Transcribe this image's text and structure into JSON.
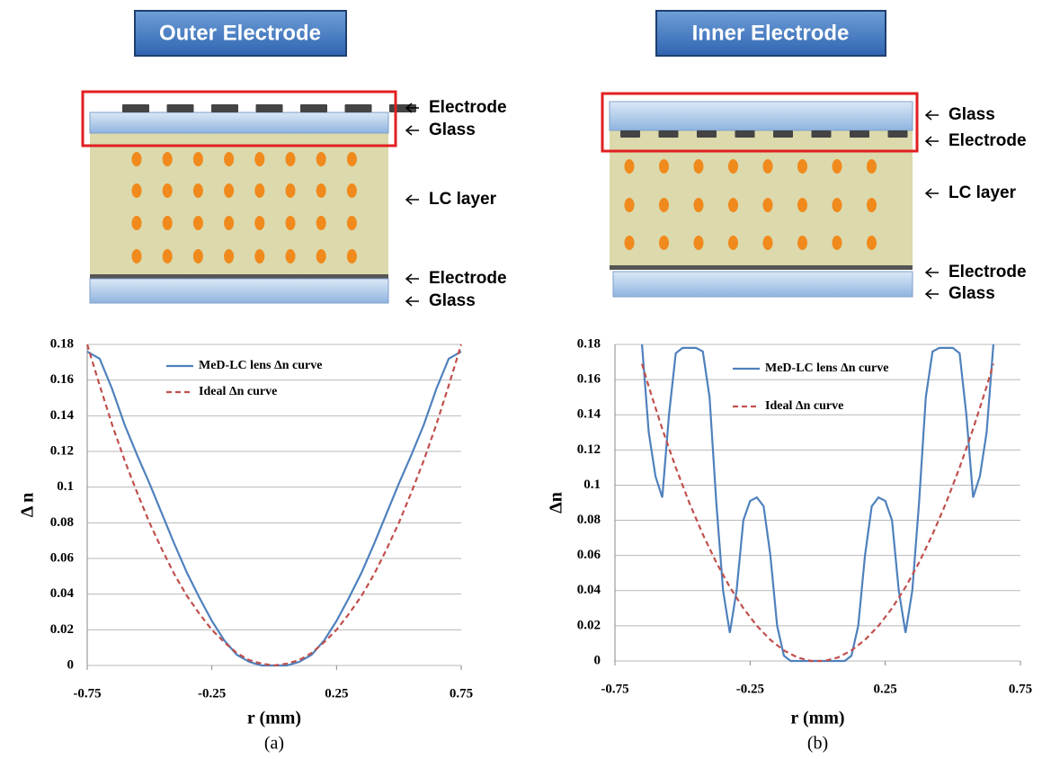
{
  "figures": [
    {
      "banner": "Outer Electrode",
      "labels": [
        "Electrode",
        "Glass",
        "LC layer",
        "Electrode",
        "Glass"
      ]
    },
    {
      "banner": "Inner Electrode",
      "labels": [
        "Glass",
        "Electrode",
        "LC layer",
        "Electrode",
        "Glass"
      ]
    }
  ],
  "chart_data": [
    {
      "type": "line",
      "caption": "(a)",
      "xlabel": "r (mm)",
      "ylabel": "Δ n",
      "x": [
        -0.75,
        -0.7,
        -0.65,
        -0.6,
        -0.55,
        -0.5,
        -0.45,
        -0.4,
        -0.35,
        -0.3,
        -0.25,
        -0.2,
        -0.15,
        -0.1,
        -0.05,
        0,
        0.05,
        0.1,
        0.15,
        0.2,
        0.25,
        0.3,
        0.35,
        0.4,
        0.45,
        0.5,
        0.55,
        0.6,
        0.65,
        0.7,
        0.75
      ],
      "series": [
        {
          "name": "MeD-LC lens Δn curve",
          "color": "#4f81bd",
          "dash": false,
          "values": [
            0.176,
            0.172,
            0.155,
            0.135,
            0.118,
            0.102,
            0.085,
            0.068,
            0.052,
            0.038,
            0.025,
            0.014,
            0.006,
            0.002,
            0,
            0,
            0,
            0.002,
            0.006,
            0.014,
            0.025,
            0.038,
            0.052,
            0.068,
            0.085,
            0.102,
            0.118,
            0.135,
            0.155,
            0.172,
            0.176
          ]
        },
        {
          "name": "Ideal Δn curve",
          "color": "#c0504d",
          "dash": true,
          "values": [
            0.18,
            0.157,
            0.135,
            0.115,
            0.097,
            0.08,
            0.065,
            0.051,
            0.039,
            0.029,
            0.02,
            0.013,
            0.007,
            0.003,
            0.001,
            0,
            0.001,
            0.003,
            0.007,
            0.013,
            0.02,
            0.029,
            0.039,
            0.051,
            0.065,
            0.08,
            0.097,
            0.115,
            0.135,
            0.157,
            0.18
          ]
        }
      ],
      "xlim": [
        -0.75,
        0.75
      ],
      "xticks": [
        -0.75,
        -0.25,
        0.25,
        0.75
      ],
      "ylim": [
        0,
        0.18
      ],
      "yticks": [
        0,
        0.02,
        0.04,
        0.06,
        0.08,
        0.1,
        0.12,
        0.14,
        0.16,
        0.18
      ],
      "grid": true
    },
    {
      "type": "line",
      "caption": "(b)",
      "xlabel": "r (mm)",
      "ylabel": "Δn",
      "x": [
        -0.75,
        -0.725,
        -0.7,
        -0.675,
        -0.65,
        -0.625,
        -0.6,
        -0.575,
        -0.55,
        -0.525,
        -0.5,
        -0.475,
        -0.45,
        -0.425,
        -0.4,
        -0.375,
        -0.35,
        -0.325,
        -0.3,
        -0.275,
        -0.25,
        -0.225,
        -0.2,
        -0.175,
        -0.15,
        -0.125,
        -0.1,
        -0.075,
        -0.05,
        -0.025,
        0,
        0.025,
        0.05,
        0.075,
        0.1,
        0.125,
        0.15,
        0.175,
        0.2,
        0.225,
        0.25,
        0.275,
        0.3,
        0.325,
        0.35,
        0.375,
        0.4,
        0.425,
        0.45,
        0.475,
        0.5,
        0.525,
        0.55,
        0.575,
        0.6,
        0.625,
        0.65,
        0.675,
        0.7,
        0.725,
        0.75
      ],
      "series": [
        {
          "name": "MeD-LC lens Δn curve",
          "color": "#4f81bd",
          "dash": false,
          "values": [
            null,
            null,
            null,
            null,
            0.18,
            0.13,
            0.105,
            0.093,
            0.14,
            0.175,
            0.178,
            0.178,
            0.178,
            0.176,
            0.15,
            0.09,
            0.04,
            0.016,
            0.04,
            0.08,
            0.091,
            0.093,
            0.088,
            0.06,
            0.02,
            0.003,
            0,
            0,
            0,
            0,
            0,
            0,
            0,
            0,
            0,
            0.003,
            0.02,
            0.06,
            0.088,
            0.093,
            0.091,
            0.08,
            0.04,
            0.016,
            0.04,
            0.09,
            0.15,
            0.176,
            0.178,
            0.178,
            0.178,
            0.175,
            0.14,
            0.093,
            0.105,
            0.13,
            0.18,
            null,
            null,
            null,
            null
          ]
        },
        {
          "name": "Ideal Δn curve",
          "color": "#c0504d",
          "dash": true,
          "values": [
            null,
            null,
            null,
            null,
            0.169,
            0.156,
            0.144,
            0.132,
            0.121,
            0.11,
            0.1,
            0.09,
            0.081,
            0.072,
            0.064,
            0.056,
            0.049,
            0.042,
            0.036,
            0.03,
            0.025,
            0.02,
            0.016,
            0.012,
            0.009,
            0.006,
            0.004,
            0.002,
            0.001,
            0,
            0,
            0,
            0.001,
            0.002,
            0.004,
            0.006,
            0.009,
            0.012,
            0.016,
            0.02,
            0.025,
            0.03,
            0.036,
            0.042,
            0.049,
            0.056,
            0.064,
            0.072,
            0.081,
            0.09,
            0.1,
            0.11,
            0.121,
            0.132,
            0.144,
            0.156,
            0.169,
            null,
            null,
            null,
            null
          ]
        }
      ],
      "xlim": [
        -0.75,
        0.75
      ],
      "xticks": [
        -0.75,
        -0.25,
        0.25,
        0.75
      ],
      "ylim": [
        0,
        0.18
      ],
      "yticks": [
        0,
        0.02,
        0.04,
        0.06,
        0.08,
        0.1,
        0.12,
        0.14,
        0.16,
        0.18
      ],
      "grid": true
    }
  ]
}
